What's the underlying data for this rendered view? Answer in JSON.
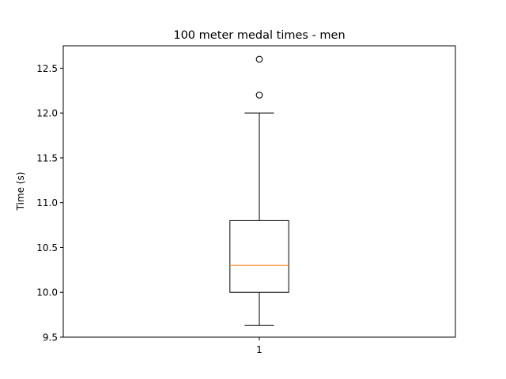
{
  "chart_data": {
    "type": "box",
    "title": "100 meter medal times - men",
    "ylabel": "Time (s)",
    "xlabel": "",
    "ylim": [
      9.5,
      12.75
    ],
    "yticks": [
      9.5,
      10.0,
      10.5,
      11.0,
      11.5,
      12.0,
      12.5
    ],
    "ytick_labels": [
      "9.5",
      "10.0",
      "10.5",
      "11.0",
      "11.5",
      "12.0",
      "12.5"
    ],
    "categories": [
      "1"
    ],
    "boxes": [
      {
        "category": "1",
        "whisker_low": 9.63,
        "q1": 10.0,
        "median": 10.3,
        "q3": 10.8,
        "whisker_high": 12.0,
        "outliers": [
          12.2,
          12.6
        ]
      }
    ],
    "grid": false,
    "colors": {
      "box": "#000000",
      "median": "#ff7f0e",
      "whisker": "#000000",
      "outlier": "#000000"
    }
  }
}
